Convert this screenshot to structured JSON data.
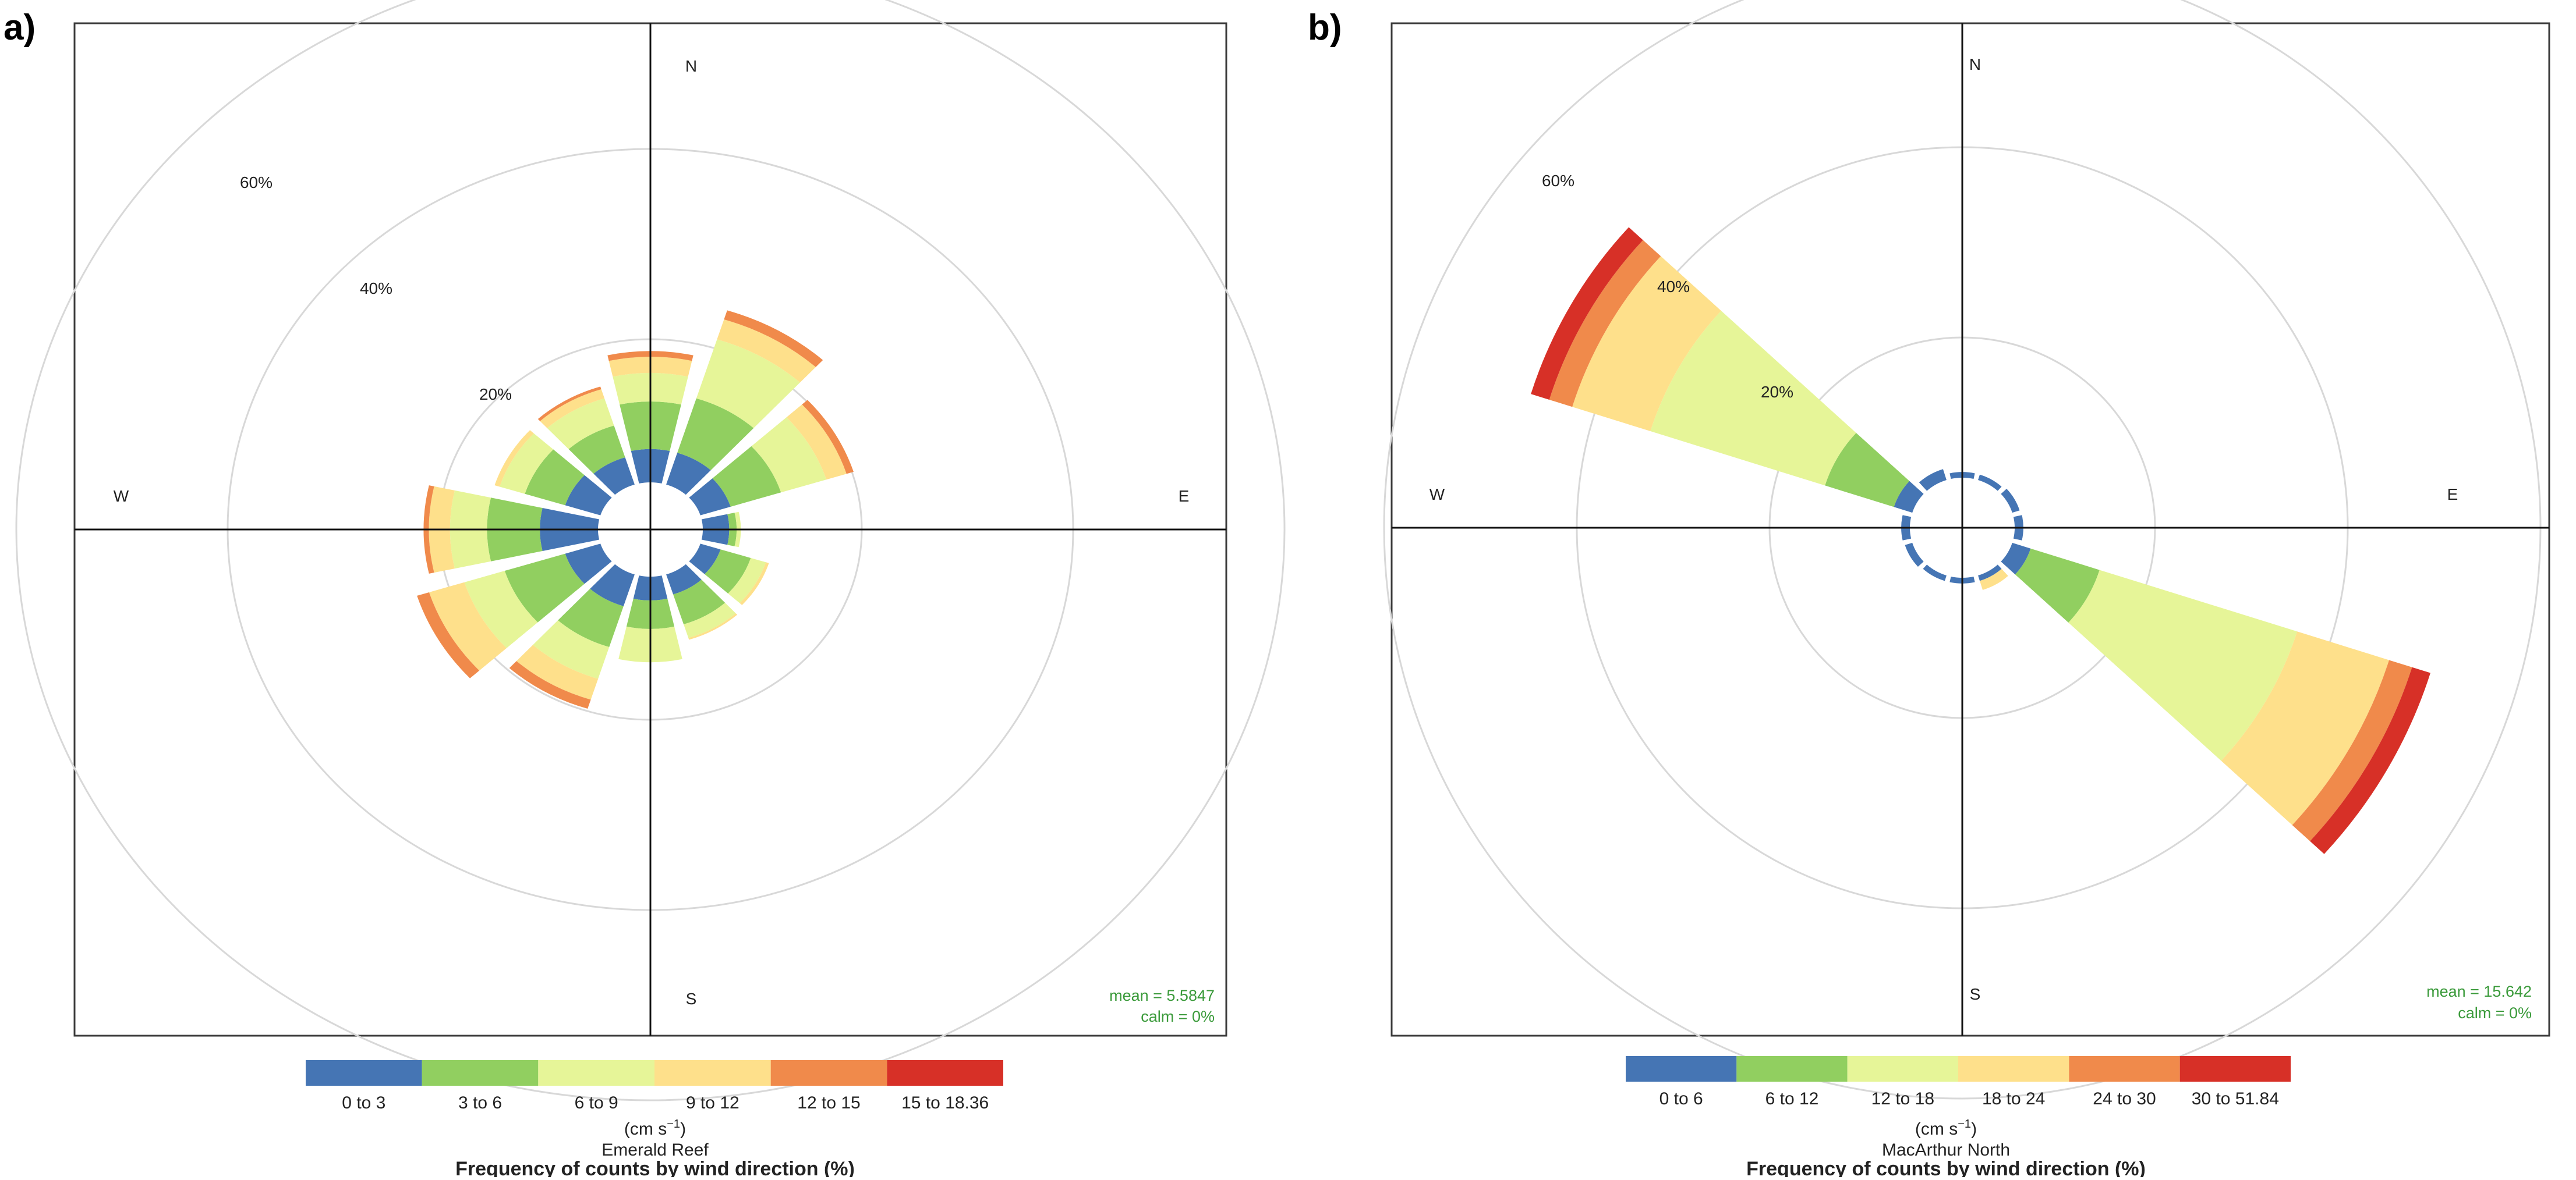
{
  "chart_data": [
    {
      "type": "wind-rose",
      "panel_label": "a)",
      "compass": {
        "north": "N",
        "east": "E",
        "south": "S",
        "west": "W"
      },
      "radial_labels": [
        "20%",
        "40%",
        "60%"
      ],
      "radial_axis": {
        "max": 60,
        "unit": "%",
        "grid": [
          20,
          40,
          60
        ]
      },
      "grid": true,
      "stats": {
        "mean": "mean = 5.5847",
        "calm": "calm = 0%"
      },
      "speed_bins": [
        {
          "label": "0 to 3",
          "color": "#4575b4"
        },
        {
          "label": "3 to 6",
          "color": "#91cf60"
        },
        {
          "label": "6 to 9",
          "color": "#e6f598"
        },
        {
          "label": "9 to 12",
          "color": "#fee08b"
        },
        {
          "label": "12 to 15",
          "color": "#f08a4b"
        },
        {
          "label": "15 to 18.36",
          "color": "#d73027"
        }
      ],
      "units_label": "(cm s",
      "units_superscript": "−1",
      "units_close": ")",
      "site": "Emerald Reef",
      "title": "Frequency of counts by wind direction (%)",
      "directions_deg": [
        0,
        30,
        60,
        90,
        120,
        150,
        180,
        210,
        240,
        270,
        300,
        330
      ],
      "cumulative_percent": [
        [
          3.5,
          8.5,
          11.5,
          13.2,
          13.8,
          13.8
        ],
        [
          3.5,
          9.5,
          16.0,
          18.2,
          19.2,
          19.2
        ],
        [
          3.0,
          8.0,
          12.5,
          14.5,
          15.2,
          15.2
        ],
        [
          2.5,
          3.2,
          3.6,
          3.6,
          3.6,
          3.6
        ],
        [
          2.0,
          5.0,
          6.5,
          6.8,
          6.8,
          6.8
        ],
        [
          2.2,
          5.5,
          7.0,
          7.2,
          7.2,
          7.2
        ],
        [
          2.5,
          5.5,
          9.0,
          9.0,
          9.0,
          9.0
        ],
        [
          3.5,
          8.0,
          11.5,
          13.8,
          14.8,
          14.8
        ],
        [
          3.5,
          9.5,
          13.5,
          17.0,
          18.2,
          18.2
        ],
        [
          5.5,
          10.5,
          14.0,
          16.0,
          16.5,
          16.5
        ],
        [
          3.5,
          7.5,
          10.0,
          10.5,
          10.5,
          10.5
        ],
        [
          3.0,
          6.5,
          9.5,
          10.5,
          10.8,
          10.8
        ]
      ]
    },
    {
      "type": "wind-rose",
      "panel_label": "b)",
      "compass": {
        "north": "N",
        "east": "E",
        "south": "S",
        "west": "W"
      },
      "radial_labels": [
        "20%",
        "40%",
        "60%"
      ],
      "radial_axis": {
        "max": 60,
        "unit": "%",
        "grid": [
          20,
          40,
          60
        ]
      },
      "grid": true,
      "stats": {
        "mean": "mean = 15.642",
        "calm": "calm = 0%"
      },
      "speed_bins": [
        {
          "label": "0 to 6",
          "color": "#4575b4"
        },
        {
          "label": "6 to 12",
          "color": "#91cf60"
        },
        {
          "label": "12 to 18",
          "color": "#e6f598"
        },
        {
          "label": "18 to 24",
          "color": "#fee08b"
        },
        {
          "label": "24 to 30",
          "color": "#f08a4b"
        },
        {
          "label": "30 to 51.84",
          "color": "#d73027"
        }
      ],
      "units_label": "(cm s",
      "units_superscript": "−1",
      "units_close": ")",
      "site": "MacArthur North",
      "title": "Frequency of counts by wind direction (%)",
      "directions_deg": [
        0,
        30,
        60,
        90,
        120,
        150,
        180,
        210,
        240,
        270,
        300,
        330
      ],
      "cumulative_percent": [
        [
          0.6,
          0.6,
          0.6,
          0.6,
          0.6,
          0.6
        ],
        [
          0.6,
          0.6,
          0.6,
          0.6,
          0.6,
          0.6
        ],
        [
          0.8,
          0.8,
          0.8,
          0.8,
          0.8,
          0.8
        ],
        [
          0.9,
          0.9,
          0.9,
          0.9,
          0.9,
          0.9
        ],
        [
          2.0,
          9.5,
          31.0,
          41.0,
          43.5,
          45.5
        ],
        [
          0.6,
          0.6,
          0.6,
          1.6,
          1.6,
          1.6
        ],
        [
          0.6,
          0.6,
          0.6,
          0.6,
          0.6,
          0.6
        ],
        [
          0.6,
          0.6,
          0.6,
          0.6,
          0.6,
          0.6
        ],
        [
          0.8,
          0.8,
          0.8,
          0.8,
          0.8,
          0.8
        ],
        [
          0.9,
          0.9,
          0.9,
          0.9,
          0.9,
          0.9
        ],
        [
          2.0,
          9.5,
          28.5,
          37.0,
          39.5,
          41.5
        ],
        [
          1.2,
          1.2,
          1.2,
          1.2,
          1.2,
          1.2
        ]
      ]
    }
  ]
}
